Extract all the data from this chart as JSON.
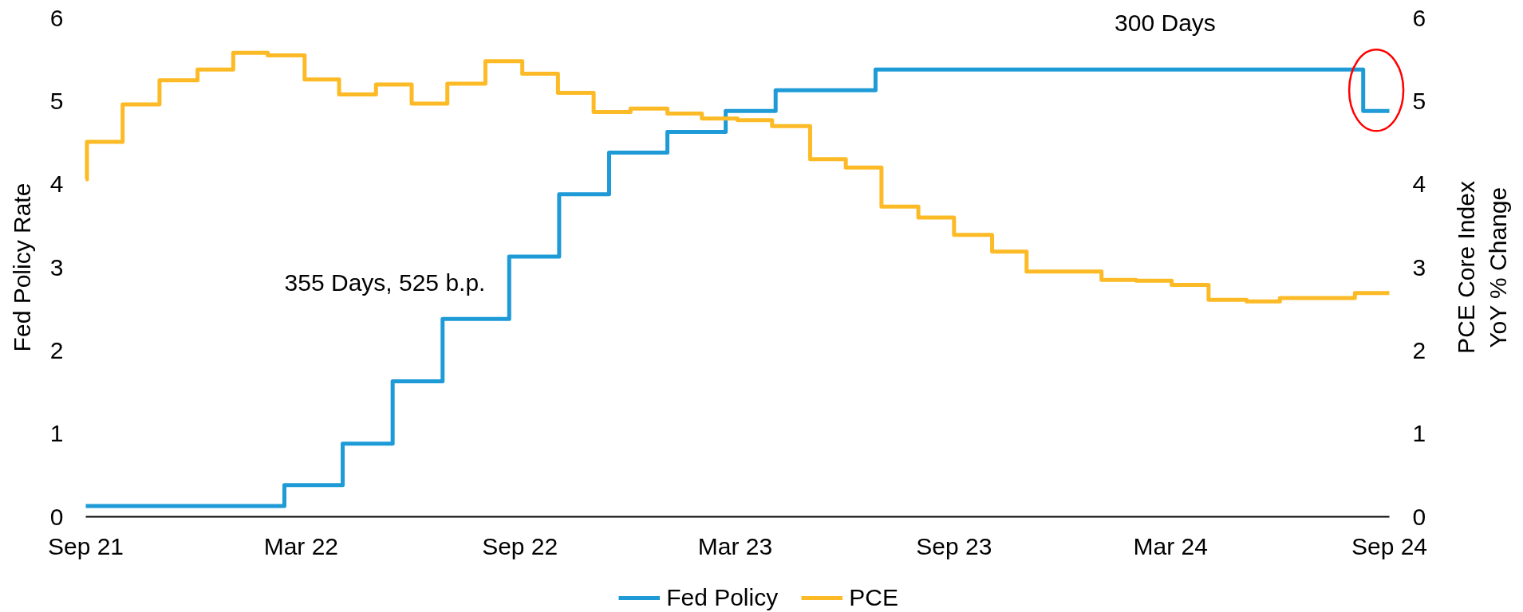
{
  "chart_data": {
    "type": "step",
    "xlim": [
      "2021-09-01",
      "2024-09-01"
    ],
    "xticks": [
      {
        "value": "2021-09-01",
        "label": "Sep 21"
      },
      {
        "value": "2022-03-01",
        "label": "Mar 22"
      },
      {
        "value": "2022-09-01",
        "label": "Sep 22"
      },
      {
        "value": "2023-03-01",
        "label": "Mar 23"
      },
      {
        "value": "2023-09-01",
        "label": "Sep 23"
      },
      {
        "value": "2024-03-01",
        "label": "Mar 24"
      },
      {
        "value": "2024-09-01",
        "label": "Sep 24"
      }
    ],
    "ylim": [
      0,
      6
    ],
    "yticks": [
      0,
      1,
      2,
      3,
      4,
      5,
      6
    ],
    "y2lim": [
      0,
      6
    ],
    "y2ticks": [
      0,
      1,
      2,
      3,
      4,
      5,
      6
    ],
    "ylabel": "Fed Policy Rate",
    "y2label": "PCE Core Index\nYoY % Change",
    "legend": "bottom",
    "grid": false,
    "annotations": [
      "355 Days, 525 b.p.",
      "300 Days"
    ],
    "series": [
      {
        "name": "Fed Policy",
        "color": "#1e9bd7",
        "x": [
          "2021-09-01",
          "2022-02-15",
          "2022-04-05",
          "2022-05-17",
          "2022-06-28",
          "2022-08-23",
          "2022-10-04",
          "2022-11-15",
          "2023-01-03",
          "2023-02-21",
          "2023-04-04",
          "2023-06-27",
          "2024-08-10",
          "2024-09-01"
        ],
        "values": [
          0.13,
          0.38,
          0.88,
          1.63,
          2.38,
          3.13,
          3.88,
          4.38,
          4.63,
          4.88,
          5.13,
          5.38,
          4.88,
          4.88
        ]
      },
      {
        "name": "PCE",
        "color": "#fcbb26",
        "axis": "y2",
        "x": [
          "2021-09-01",
          "2021-09-02",
          "2021-10-02",
          "2021-11-02",
          "2021-12-04",
          "2022-01-03",
          "2022-02-01",
          "2022-03-04",
          "2022-04-02",
          "2022-05-03",
          "2022-06-02",
          "2022-07-02",
          "2022-08-03",
          "2022-09-03",
          "2022-10-03",
          "2022-11-02",
          "2022-12-03",
          "2023-01-03",
          "2023-02-01",
          "2023-03-03",
          "2023-04-01",
          "2023-05-03",
          "2023-06-02",
          "2023-07-02",
          "2023-08-02",
          "2023-09-01",
          "2023-10-03",
          "2023-11-01",
          "2024-01-03",
          "2024-02-01",
          "2024-03-02",
          "2024-04-02",
          "2024-05-04",
          "2024-06-01",
          "2024-08-03",
          "2024-09-01"
        ],
        "values": [
          4.06,
          4.51,
          4.96,
          5.25,
          5.38,
          5.58,
          5.55,
          5.26,
          5.08,
          5.2,
          4.97,
          5.21,
          5.48,
          5.33,
          5.1,
          4.87,
          4.91,
          4.85,
          4.79,
          4.77,
          4.7,
          4.3,
          4.2,
          3.73,
          3.6,
          3.39,
          3.19,
          2.95,
          2.85,
          2.84,
          2.79,
          2.61,
          2.59,
          2.63,
          2.69,
          2.69
        ]
      }
    ]
  }
}
